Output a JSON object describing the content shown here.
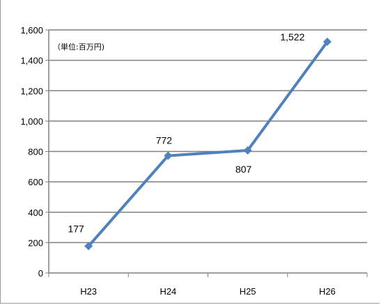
{
  "chart_data": {
    "type": "line",
    "categories": [
      "H23",
      "H24",
      "H25",
      "H26"
    ],
    "series": [
      {
        "values": [
          177,
          772,
          807,
          1522
        ],
        "data_labels": [
          "177",
          "772",
          "807",
          "1,522"
        ],
        "color": "#4f81bd"
      }
    ],
    "unit_note": "（単位:百万円)",
    "ylim": [
      0,
      1600
    ],
    "y_ticks": [
      0,
      200,
      400,
      600,
      800,
      1000,
      1200,
      1400,
      1600
    ],
    "y_tick_labels": [
      "0",
      "200",
      "400",
      "600",
      "800",
      "1,000",
      "1,200",
      "1,400",
      "1,600"
    ],
    "grid": "horizontal",
    "legend": "none",
    "gridline_color": "#808080",
    "axis_color": "#808080"
  }
}
